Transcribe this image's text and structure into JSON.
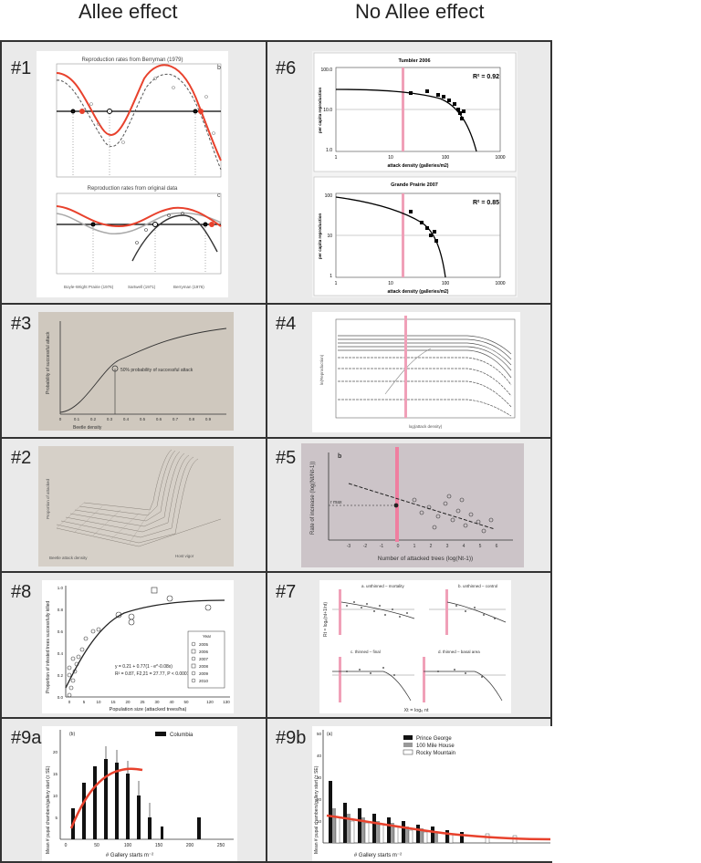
{
  "headers": {
    "left": "Allee effect",
    "right": "No Allee effect"
  },
  "cells": {
    "c1": "#1",
    "c6": "#6",
    "c3": "#3",
    "c4": "#4",
    "c2": "#2",
    "c5": "#5",
    "c8": "#8",
    "c7": "#7",
    "c9a": "#9a",
    "c9b": "#9b"
  },
  "fig1": {
    "title_b": "Reproduction rates from Berryman (1979)",
    "tag_b": "b",
    "title_c": "Reproduction rates from original data",
    "tag_c": "c",
    "legend": [
      "Boyle-Wright Prairie (1976)",
      "Sartwell (1971)",
      "Berryman (1976)"
    ]
  },
  "fig6": {
    "top": {
      "title": "Tumbler 2006",
      "r2": "R² = 0.92",
      "ylabel": "per capita reproduction",
      "xlabel": "attack density (galleries/m2)",
      "yticks": [
        "100.0",
        "10.0",
        "1.0"
      ],
      "xticks": [
        "1",
        "10",
        "100",
        "1000"
      ]
    },
    "bottom": {
      "title": "Grande Prairie 2007",
      "r2": "R² = 0.85",
      "ylabel": "per capita reproduction",
      "xlabel": "attack density (galleries/m2)",
      "yticks": [
        "100",
        "10",
        "1"
      ],
      "xticks": [
        "1",
        "10",
        "100",
        "1000"
      ]
    }
  },
  "fig3": {
    "ylabel": "Probability of successful attack",
    "xlabel": "Beetle density",
    "annotation": "50% probability of successful attack",
    "xticks": [
      "0",
      "0.1",
      "0.2",
      "0.3",
      "0.4",
      "0.5",
      "0.6",
      "0.7",
      "0.8",
      "0.9"
    ]
  },
  "fig4": {
    "ylabel": "ln(Reproduction)",
    "xlabel": "log(attack density)"
  },
  "fig2": {
    "ylabel": "Proportion of attacked",
    "xlabel": "Beetle attack density",
    "zlabel": "Host vigor"
  },
  "fig5": {
    "tag": "b",
    "ylabel": "Rate of increase (log(Nt/Nt-1))",
    "xlabel": "Number of attacked trees (log(Nt-1))",
    "rmax": "r max",
    "xticks": [
      "-3",
      "-2",
      "-1",
      "0",
      "1",
      "2",
      "3",
      "4",
      "5",
      "6"
    ],
    "yticks": [
      "2",
      "1",
      "0",
      "-1",
      "-2",
      "-3",
      "-4"
    ]
  },
  "fig8": {
    "ylabel": "Proportion of infested trees successfully killed",
    "xlabel": "Population size (attacked trees/ha)",
    "equation": "y = 0.21 + 0.77(1 - e^-0.08x)",
    "stats": "R² = 0.87, F2,21 = 27.77, P < 0.0001",
    "legend_title": "Year",
    "years": [
      "2005",
      "2006",
      "2007",
      "2008",
      "2009",
      "2010"
    ],
    "yticks": [
      "1.0",
      "0.8",
      "0.6",
      "0.4",
      "0.2",
      "0.0"
    ],
    "xticks": [
      "0",
      "5",
      "10",
      "15",
      "20",
      "25",
      "30",
      "40",
      "50",
      "120",
      "130"
    ]
  },
  "fig7": {
    "panels": [
      {
        "title": "a. unthinned – mortality"
      },
      {
        "title": "b. unthinned – control"
      },
      {
        "title": "c. thinned – final"
      },
      {
        "title": "d. thinned – basal area"
      }
    ],
    "ylabel": "Rt = logₑ(nt+1/nt)",
    "xlabel": "Xt = logₑ nt"
  },
  "fig9a": {
    "tag": "(b)",
    "legend": "Columbia",
    "ylabel": "Mean # pupal chambers/gallery start (± SE)",
    "xlabel": "# Gallery starts m⁻²",
    "xticks": [
      "0",
      "50",
      "100",
      "150",
      "200",
      "250"
    ],
    "yticks": [
      "20",
      "15",
      "10",
      "5"
    ]
  },
  "fig9b": {
    "tag": "(a)",
    "legend": [
      "Prince George",
      "100 Mile House",
      "Rocky Mountain"
    ],
    "ylabel": "Mean # pupal chambers/gallery start (± SE)",
    "xlabel": "# Gallery starts m⁻²",
    "yticks": [
      "50",
      "40",
      "30",
      "20",
      "10"
    ]
  },
  "colors": {
    "red": "#e8412c",
    "pink": "#f0a0b8",
    "frame": "#333333",
    "cell": "#ececec"
  }
}
